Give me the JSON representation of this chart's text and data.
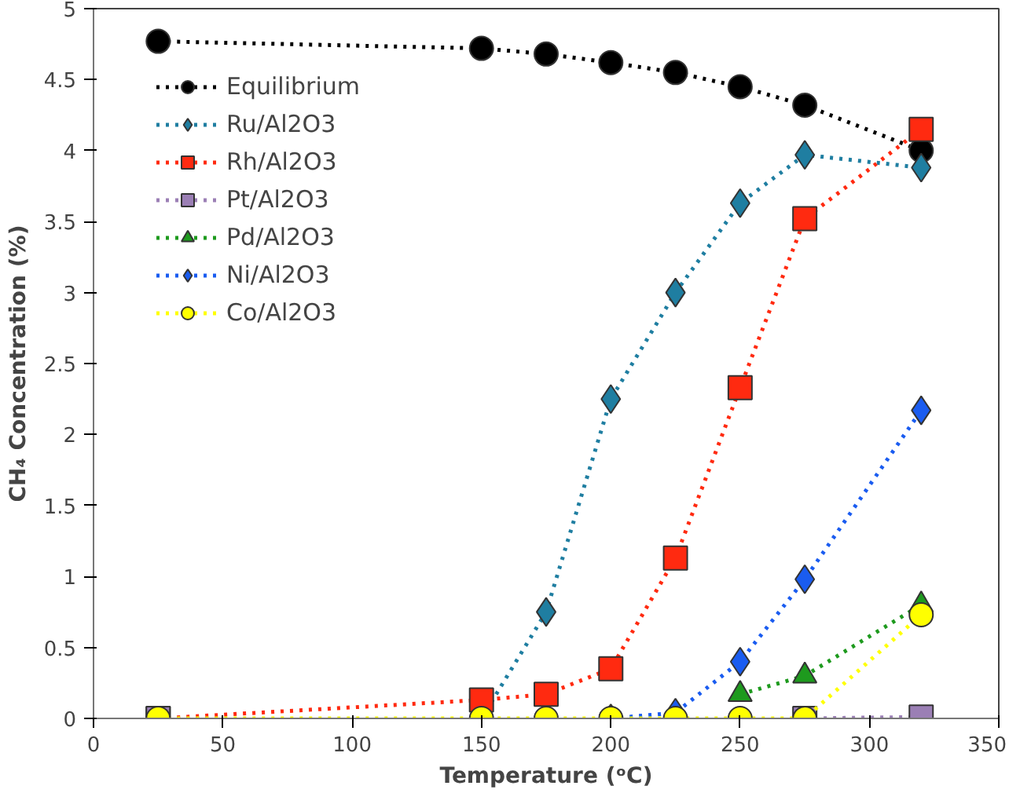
{
  "chart_data": {
    "type": "line",
    "xlabel": "Temperature (ᵒC)",
    "ylabel": "CH₄ Concentration (%)",
    "x": [
      25,
      150,
      175,
      200,
      225,
      250,
      275,
      320
    ],
    "xlim": [
      0,
      350
    ],
    "xticks": [
      0,
      50,
      100,
      150,
      200,
      250,
      300,
      350
    ],
    "ylim": [
      0,
      5
    ],
    "yticks": [
      0,
      0.5,
      1,
      1.5,
      2,
      2.5,
      3,
      3.5,
      4,
      4.5,
      5
    ],
    "grid": false,
    "legend": "top left",
    "line_style": "dotted",
    "series": [
      {
        "name": "Equilibrium",
        "color": "#000000",
        "marker": "circle",
        "values": [
          4.77,
          4.72,
          4.68,
          4.62,
          4.55,
          4.45,
          4.32,
          4.0
        ]
      },
      {
        "name": "Ru/Al2O3",
        "color": "#1f7ea1",
        "marker": "diamond",
        "values": [
          null,
          0,
          0.75,
          2.25,
          3.0,
          3.63,
          3.97,
          3.88
        ]
      },
      {
        "name": "Rh/Al2O3",
        "color": "#ff2a10",
        "marker": "square",
        "values": [
          0,
          0.13,
          0.17,
          0.35,
          1.13,
          2.33,
          3.52,
          4.15
        ]
      },
      {
        "name": "Pt/Al2O3",
        "color": "#9b7fb5",
        "marker": "square",
        "values": [
          0,
          null,
          null,
          null,
          null,
          null,
          0,
          0.01
        ]
      },
      {
        "name": "Pd/Al2O3",
        "color": "#1e9a1e",
        "marker": "triangle",
        "values": [
          null,
          null,
          null,
          null,
          null,
          0.17,
          0.3,
          0.8
        ]
      },
      {
        "name": "Ni/Al2O3",
        "color": "#1a5cf0",
        "marker": "diamond",
        "values": [
          null,
          null,
          null,
          0,
          0.04,
          0.4,
          0.98,
          2.17
        ]
      },
      {
        "name": "Co/Al2O3",
        "color": "#ffff00",
        "marker": "circle",
        "values": [
          0,
          0,
          0,
          0,
          0,
          0,
          0,
          0.73
        ]
      }
    ]
  }
}
